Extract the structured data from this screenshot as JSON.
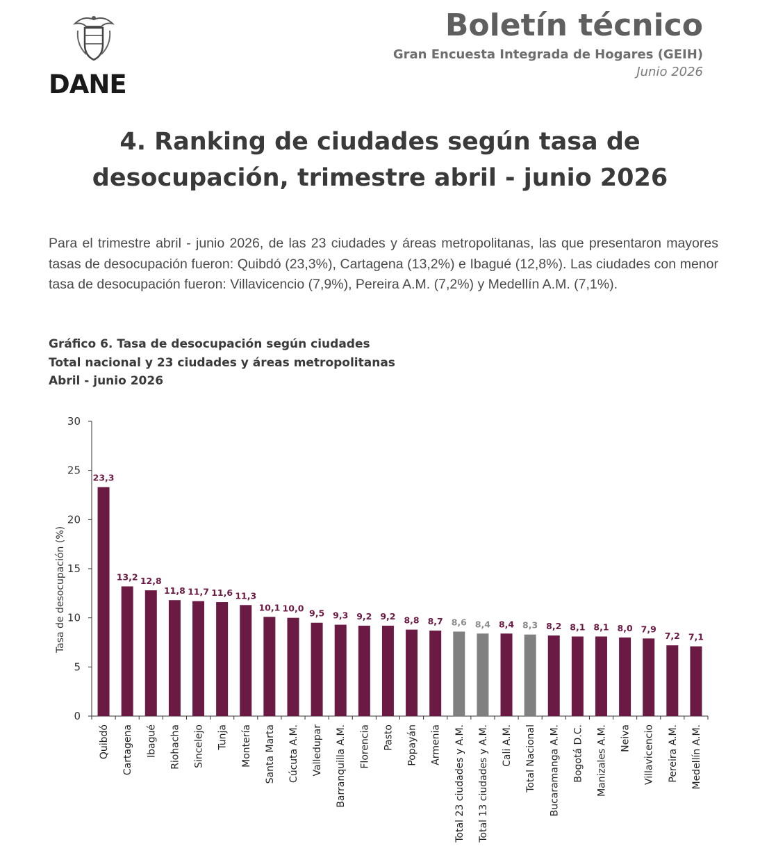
{
  "header": {
    "brand": "DANE",
    "bulletin_title": "Boletín técnico",
    "survey_name": "Gran Encuesta Integrada de Hogares (GEIH)",
    "period": "Junio 2026"
  },
  "section": {
    "title_line1": "4. Ranking de ciudades según tasa de",
    "title_line2": "desocupación, trimestre abril - junio 2026"
  },
  "intro_text": "Para el trimestre abril - junio 2026, de las 23 ciudades y áreas metropolitanas, las que presentaron mayores tasas de desocupación fueron: Quibdó (23,3%), Cartagena (13,2%) e Ibagué (12,8%). Las ciudades con menor tasa de desocupación fueron: Villavicencio (7,9%), Pereira A.M. (7,2%) y Medellín A.M. (7,1%).",
  "colors": {
    "city_bar": "#6b1a44",
    "aggregate_bar": "#808080",
    "label_city": "#6b1a44",
    "label_aggregate": "#8c8c8c"
  },
  "chart_data": {
    "type": "bar",
    "title_line1": "Gráfico 6. Tasa de desocupación según ciudades",
    "title_line2": "Total nacional y 23 ciudades y áreas metropolitanas",
    "title_line3": "Abril - junio 2026",
    "ylabel": "Tasa de desocupación (%)",
    "xlabel": "",
    "ylim": [
      0,
      30
    ],
    "yticks": [
      0,
      5,
      10,
      15,
      20,
      25,
      30
    ],
    "grid": false,
    "categories": [
      "Quibdó",
      "Cartagena",
      "Ibagué",
      "Riohacha",
      "Sincelejo",
      "Tunja",
      "Montería",
      "Santa Marta",
      "Cúcuta A.M.",
      "Valledupar",
      "Barranquilla A.M.",
      "Florencia",
      "Pasto",
      "Popayán",
      "Armenia",
      "Total 23 ciudades y A.M.",
      "Total 13 ciudades y A.M.",
      "Cali A.M.",
      "Total Nacional",
      "Bucaramanga A.M.",
      "Bogotá D.C.",
      "Manizales A.M.",
      "Neiva",
      "Villavicencio",
      "Pereira A.M.",
      "Medellín A.M."
    ],
    "values": [
      23.3,
      13.2,
      12.8,
      11.8,
      11.7,
      11.6,
      11.3,
      10.1,
      10.0,
      9.5,
      9.3,
      9.2,
      9.2,
      8.8,
      8.7,
      8.6,
      8.4,
      8.4,
      8.3,
      8.2,
      8.1,
      8.1,
      8.0,
      7.9,
      7.2,
      7.1
    ],
    "value_labels": [
      "23,3",
      "13,2",
      "12,8",
      "11,8",
      "11,7",
      "11,6",
      "11,3",
      "10,1",
      "10,0",
      "9,5",
      "9,3",
      "9,2",
      "9,2",
      "8,8",
      "8,7",
      "8,6",
      "8,4",
      "8,4",
      "8,3",
      "8,2",
      "8,1",
      "8,1",
      "8,0",
      "7,9",
      "7,2",
      "7,1"
    ],
    "aggregate": [
      false,
      false,
      false,
      false,
      false,
      false,
      false,
      false,
      false,
      false,
      false,
      false,
      false,
      false,
      false,
      true,
      true,
      false,
      true,
      false,
      false,
      false,
      false,
      false,
      false,
      false
    ]
  }
}
